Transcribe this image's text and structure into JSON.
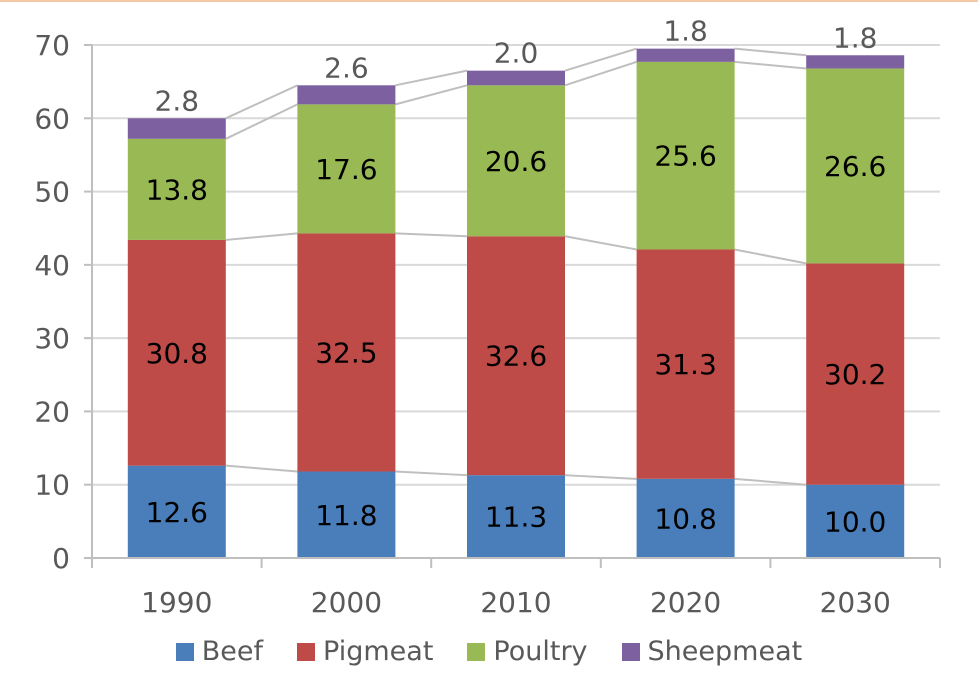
{
  "chart_data": {
    "type": "bar",
    "stacked": true,
    "categories": [
      "1990",
      "2000",
      "2010",
      "2020",
      "2030"
    ],
    "series": [
      {
        "name": "Beef",
        "color": "#4a7ebb",
        "values": [
          12.6,
          11.8,
          11.3,
          10.8,
          10.0
        ]
      },
      {
        "name": "Pigmeat",
        "color": "#be4b48",
        "values": [
          30.8,
          32.5,
          32.6,
          31.3,
          30.2
        ]
      },
      {
        "name": "Poultry",
        "color": "#98b954",
        "values": [
          13.8,
          17.6,
          20.6,
          25.6,
          26.6
        ]
      },
      {
        "name": "Sheepmeat",
        "color": "#7d60a0",
        "values": [
          2.8,
          2.6,
          2.0,
          1.8,
          1.8
        ]
      }
    ],
    "ylim": [
      0,
      70
    ],
    "yticks": [
      "0",
      "10",
      "20",
      "30",
      "40",
      "50",
      "60",
      "70"
    ],
    "grid": true,
    "series_connector_lines": true,
    "legend_position": "bottom",
    "colors": {
      "grid": "#d9d9d9",
      "axis": "#bfbfbf",
      "connector": "#bfbfbf",
      "tick_text": "#595959"
    }
  }
}
